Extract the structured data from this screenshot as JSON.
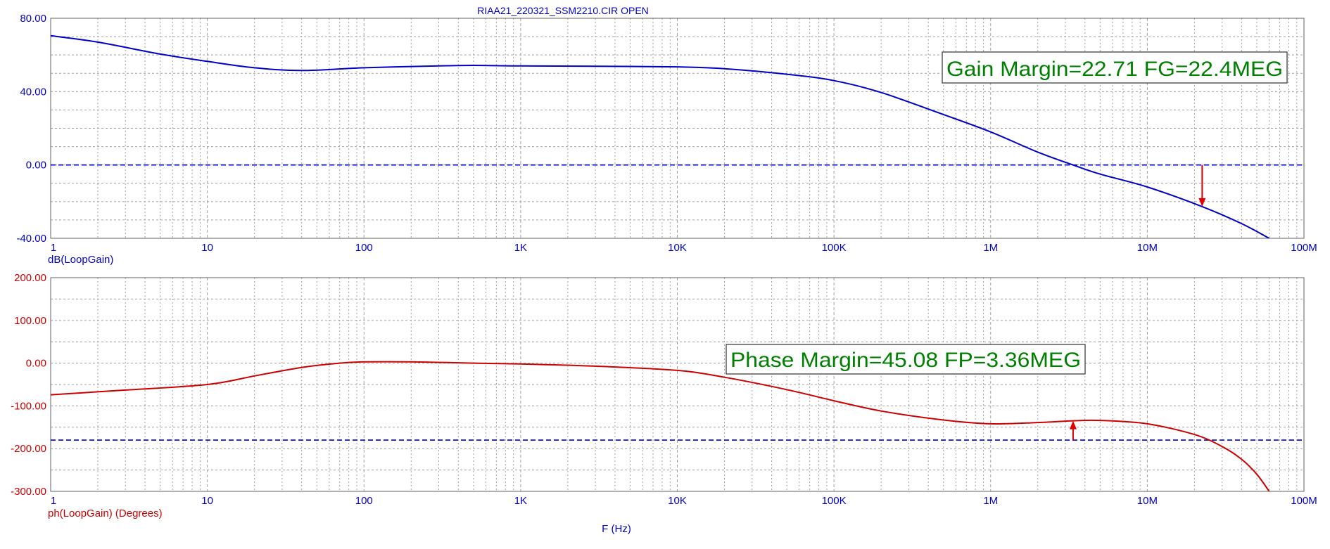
{
  "title": "RIAA21_220321_SSM2210.CIR OPEN",
  "xlabel": "F (Hz)",
  "x_tick_labels": [
    "1",
    "10",
    "100",
    "1K",
    "10K",
    "100K",
    "1M",
    "10M",
    "100M"
  ],
  "colors": {
    "gain": "#0000c8",
    "phase": "#cc0000",
    "annotation": "#008000",
    "marker": "#e00000",
    "grid": "#a0a0a0"
  },
  "gain_panel": {
    "ylabel": "dB(LoopGain)",
    "y_tick_labels": [
      "80.00",
      "40.00",
      "0.00",
      "-40.00"
    ],
    "annotation": "Gain Margin=22.71 FG=22.4MEG"
  },
  "phase_panel": {
    "ylabel": "ph(LoopGain) (Degrees)",
    "y_tick_labels": [
      "200.00",
      "100.00",
      "0.00",
      "-100.00",
      "-200.00",
      "-300.00"
    ],
    "annotation": "Phase Margin=45.08 FP=3.36MEG"
  },
  "chart_data": [
    {
      "type": "line",
      "x_scale": "log",
      "xlim": [
        1,
        100000000
      ],
      "ylim": [
        -40,
        80
      ],
      "ylabel": "dB(LoopGain)",
      "reference_line": 0,
      "series": [
        {
          "name": "dB(LoopGain)",
          "x": [
            1,
            2,
            5,
            10,
            20,
            40,
            100,
            300,
            500,
            1000,
            3000,
            10000,
            20000,
            50000,
            100000,
            200000,
            500000,
            1000000,
            2000000,
            3360000,
            5000000,
            10000000,
            22400000,
            40000000,
            60000000
          ],
          "y": [
            70.5,
            67,
            60.5,
            56.5,
            53,
            51.5,
            53,
            54,
            54.3,
            54,
            53.8,
            53.5,
            52.5,
            49.5,
            46,
            39.5,
            27.5,
            18,
            7,
            0,
            -5,
            -12,
            -22.7,
            -32,
            -40
          ]
        }
      ],
      "marker": {
        "x": 22400000,
        "from": 0,
        "to": -22.71,
        "label": "Gain Margin=22.71 FG=22.4MEG"
      }
    },
    {
      "type": "line",
      "x_scale": "log",
      "xlim": [
        1,
        100000000
      ],
      "ylim": [
        -300,
        200
      ],
      "ylabel": "ph(LoopGain) (Degrees)",
      "reference_line": -180,
      "series": [
        {
          "name": "ph(LoopGain) (Degrees)",
          "x": [
            1,
            3,
            10,
            20,
            40,
            70,
            100,
            200,
            500,
            1000,
            3000,
            10000,
            20000,
            50000,
            100000,
            200000,
            500000,
            1000000,
            2000000,
            3360000,
            5000000,
            10000000,
            20000000,
            30000000,
            40000000,
            50000000,
            60000000
          ],
          "y": [
            -74,
            -63,
            -50,
            -30,
            -10,
            0,
            3,
            3,
            0,
            -2,
            -7,
            -17,
            -33,
            -62,
            -88,
            -112,
            -133,
            -142,
            -139,
            -134.9,
            -134,
            -142,
            -167,
            -195,
            -225,
            -260,
            -300
          ]
        }
      ],
      "marker": {
        "x": 3360000,
        "from": -180,
        "to": -134.92,
        "label": "Phase Margin=45.08 FP=3.36MEG"
      }
    }
  ]
}
